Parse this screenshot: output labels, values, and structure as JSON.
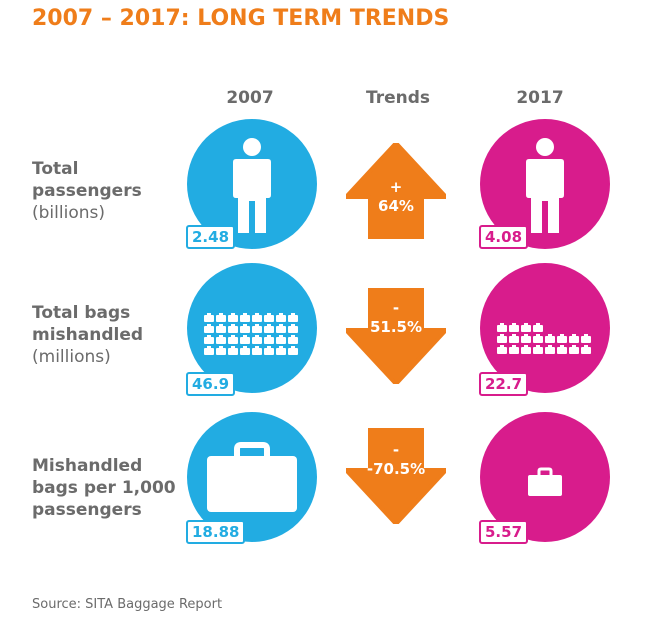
{
  "title": "2007 – 2017: LONG TERM TRENDS",
  "columns": {
    "left": "2007",
    "middle": "Trends",
    "right": "2017"
  },
  "rows": [
    {
      "label_bold": [
        "Total",
        "passengers"
      ],
      "label_unit": "(billions)",
      "value_2007": "2.48",
      "trend_sign": "+",
      "trend_value": "64%",
      "trend_direction": "up",
      "value_2017": "4.08"
    },
    {
      "label_bold": [
        "Total bags",
        "mishandled"
      ],
      "label_unit": "(millions)",
      "value_2007": "46.9",
      "trend_sign": "-",
      "trend_value": "51.5%",
      "trend_direction": "down",
      "value_2017": "22.7"
    },
    {
      "label_bold": [
        "Mishandled",
        "bags per 1,000",
        "passengers"
      ],
      "label_unit": "",
      "value_2007": "18.88",
      "trend_sign": "-",
      "trend_value": "-70.5%",
      "trend_direction": "down",
      "value_2017": "5.57"
    }
  ],
  "source": "Source: SITA Baggage Report",
  "colors": {
    "orange": "#ef7d1a",
    "blue": "#22ace2",
    "pink": "#d81c8c",
    "gray": "#6b6b6b"
  },
  "icons": [
    "person-icon",
    "bags-grid-icon",
    "briefcase-icon"
  ]
}
